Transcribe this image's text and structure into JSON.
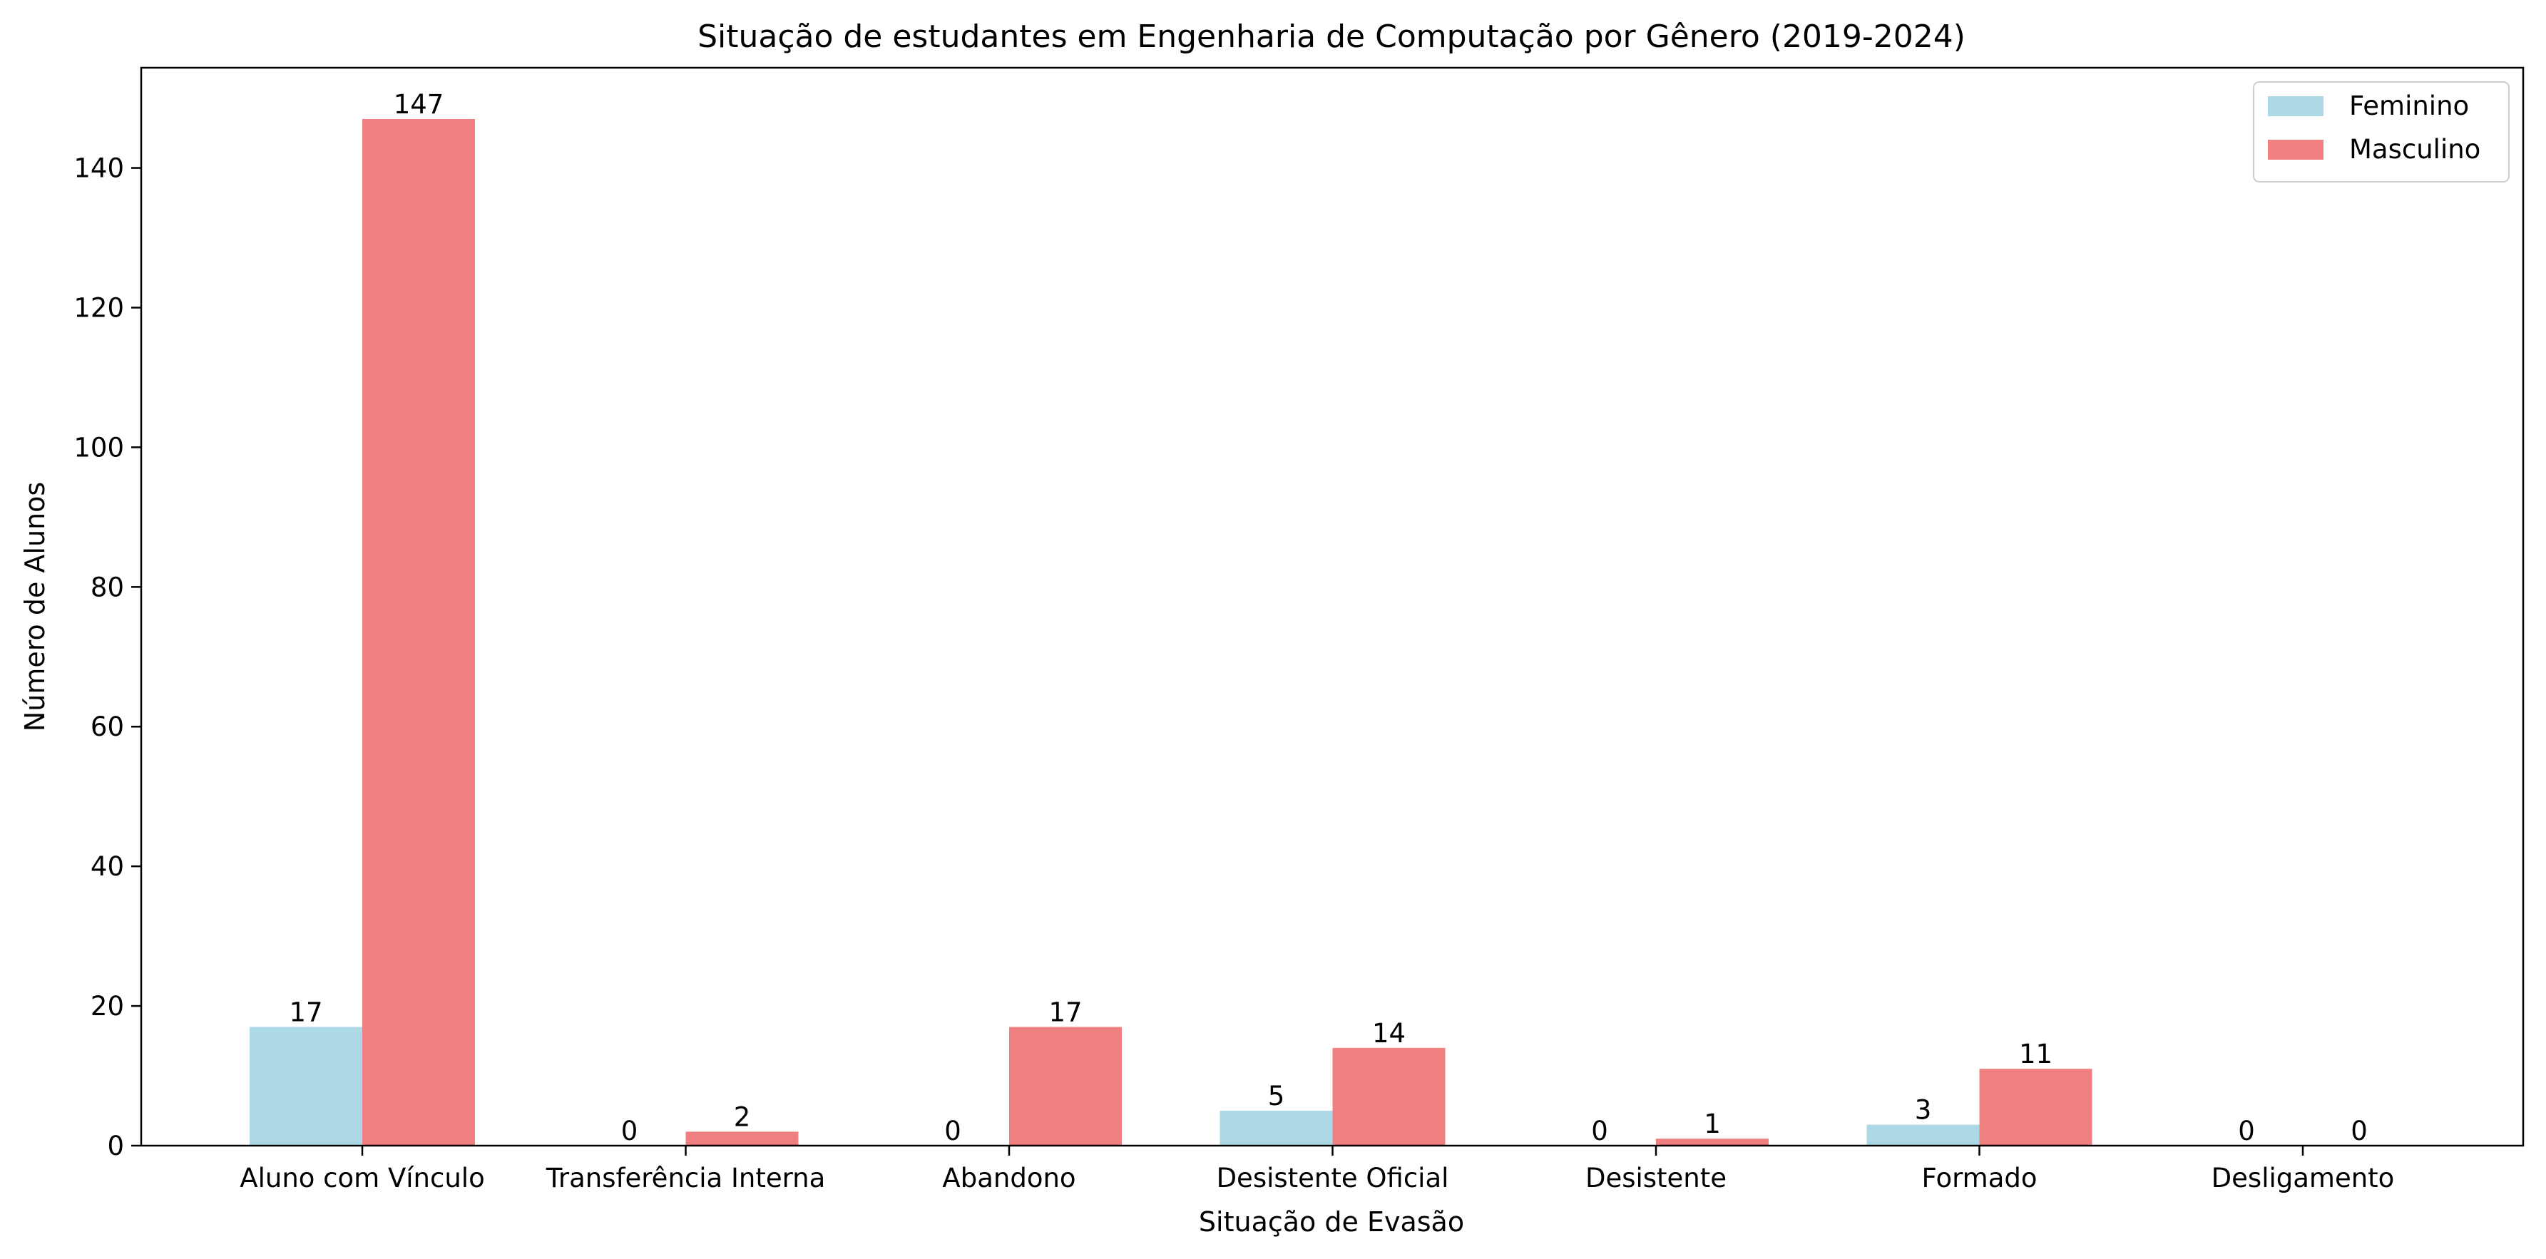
{
  "chart_data": {
    "type": "bar",
    "title": "Situação de estudantes em Engenharia de Computação por Gênero (2019-2024)",
    "xlabel": "Situação de Evasão",
    "ylabel": "Número de Alunos",
    "categories": [
      "Aluno com Vínculo",
      "Transferência Interna",
      "Abandono",
      "Desistente Oficial",
      "Desistente",
      "Formado",
      "Desligamento"
    ],
    "series": [
      {
        "name": "Feminino",
        "color": "#add8e6",
        "values": [
          17,
          0,
          0,
          5,
          0,
          3,
          0
        ]
      },
      {
        "name": "Masculino",
        "color": "#f08080",
        "values": [
          147,
          2,
          17,
          14,
          1,
          11,
          0
        ]
      }
    ],
    "ylim": [
      0,
      154.35
    ],
    "yticks": [
      0,
      20,
      40,
      60,
      80,
      100,
      120,
      140
    ],
    "grid": false,
    "legend_position": "top-right"
  }
}
